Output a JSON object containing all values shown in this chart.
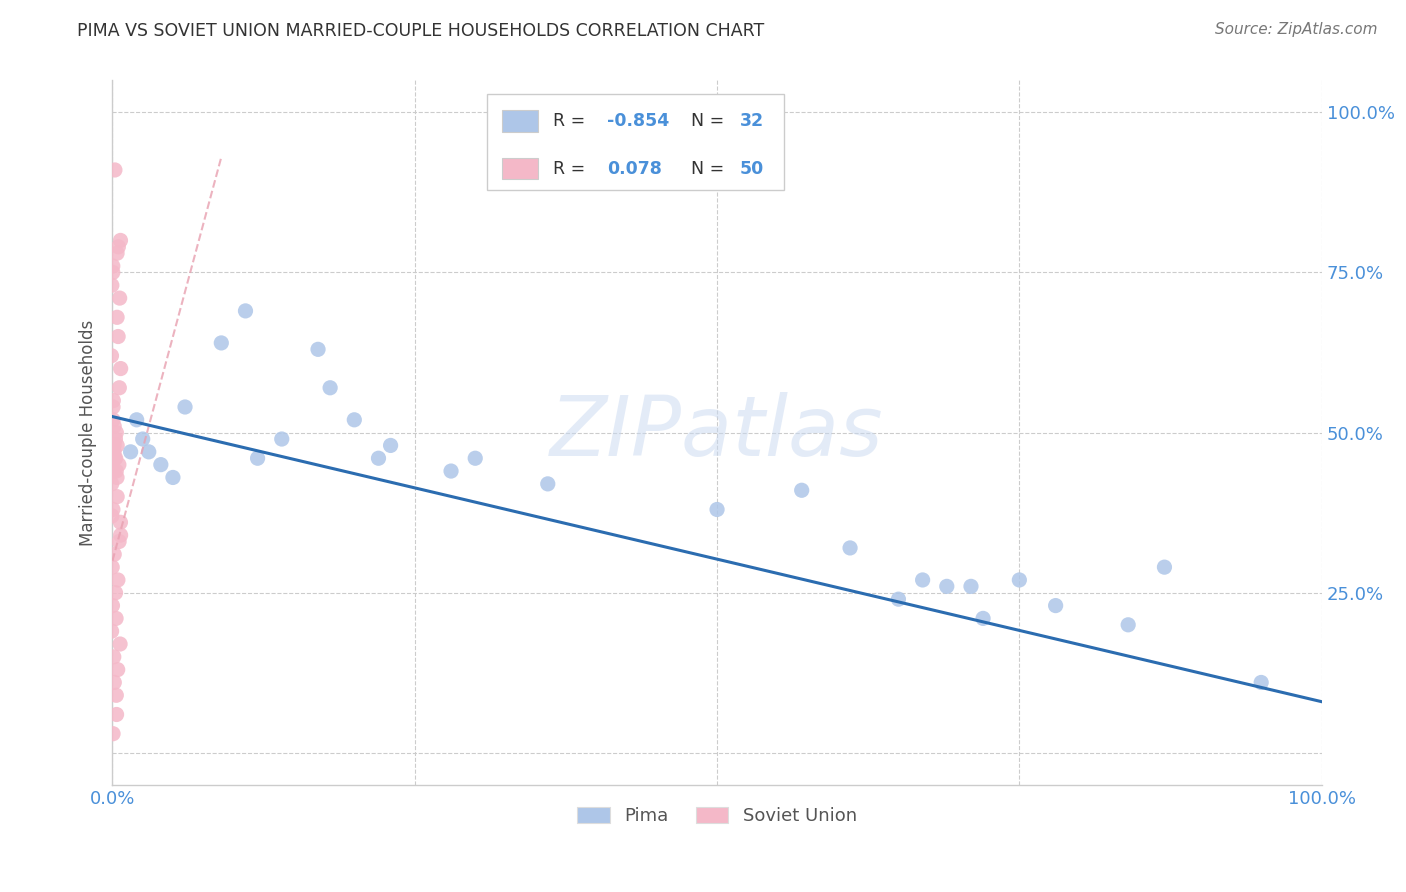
{
  "title": "PIMA VS SOVIET UNION MARRIED-COUPLE HOUSEHOLDS CORRELATION CHART",
  "source": "Source: ZipAtlas.com",
  "ylabel": "Married-couple Households",
  "background_color": "#ffffff",
  "watermark_text": "ZIPatlas",
  "legend_pima_r": "-0.854",
  "legend_pima_n": "32",
  "legend_soviet_r": "0.078",
  "legend_soviet_n": "50",
  "pima_color": "#aec6e8",
  "soviet_color": "#f4b8c8",
  "pima_line_color": "#2b6cb0",
  "soviet_line_color": "#e8a0b0",
  "title_color": "#333333",
  "label_color": "#4a90d9",
  "grid_color": "#cccccc",
  "xlim": [
    0.0,
    1.0
  ],
  "ylim": [
    -0.05,
    1.05
  ],
  "ytick_positions": [
    0.0,
    0.25,
    0.5,
    0.75,
    1.0
  ],
  "ytick_labels": [
    "",
    "25.0%",
    "50.0%",
    "75.0%",
    "100.0%"
  ],
  "xtick_positions": [
    0.0,
    0.25,
    0.5,
    0.75,
    1.0
  ],
  "xtick_labels": [
    "0.0%",
    "",
    "",
    "",
    "100.0%"
  ],
  "pima_points_x": [
    0.015,
    0.02,
    0.025,
    0.03,
    0.04,
    0.05,
    0.06,
    0.09,
    0.11,
    0.12,
    0.14,
    0.17,
    0.18,
    0.2,
    0.22,
    0.23,
    0.28,
    0.3,
    0.36,
    0.5,
    0.57,
    0.61,
    0.65,
    0.67,
    0.69,
    0.71,
    0.72,
    0.75,
    0.78,
    0.84,
    0.87,
    0.95
  ],
  "pima_points_y": [
    0.47,
    0.52,
    0.49,
    0.47,
    0.45,
    0.43,
    0.54,
    0.64,
    0.69,
    0.46,
    0.49,
    0.63,
    0.57,
    0.52,
    0.46,
    0.48,
    0.44,
    0.46,
    0.42,
    0.38,
    0.41,
    0.32,
    0.24,
    0.27,
    0.26,
    0.26,
    0.21,
    0.27,
    0.23,
    0.2,
    0.29,
    0.11
  ],
  "soviet_points_x": [
    0.003,
    0.003,
    0.003,
    0.003,
    0.003,
    0.003,
    0.003,
    0.003,
    0.003,
    0.003,
    0.003,
    0.003,
    0.003,
    0.003,
    0.003,
    0.003,
    0.003,
    0.003,
    0.003,
    0.003,
    0.003,
    0.003,
    0.003,
    0.003,
    0.003,
    0.003,
    0.003,
    0.003,
    0.003,
    0.003,
    0.003,
    0.003,
    0.003,
    0.003,
    0.003,
    0.003,
    0.003,
    0.003,
    0.003,
    0.003,
    0.003,
    0.003,
    0.003,
    0.003,
    0.003,
    0.003,
    0.003,
    0.003,
    0.003,
    0.003
  ],
  "soviet_points_y": [
    0.91,
    0.8,
    0.79,
    0.78,
    0.76,
    0.75,
    0.73,
    0.71,
    0.68,
    0.65,
    0.62,
    0.6,
    0.57,
    0.55,
    0.54,
    0.52,
    0.51,
    0.5,
    0.49,
    0.48,
    0.48,
    0.47,
    0.47,
    0.46,
    0.46,
    0.45,
    0.44,
    0.44,
    0.43,
    0.42,
    0.4,
    0.38,
    0.37,
    0.36,
    0.34,
    0.33,
    0.31,
    0.29,
    0.27,
    0.25,
    0.23,
    0.21,
    0.19,
    0.17,
    0.15,
    0.13,
    0.11,
    0.09,
    0.06,
    0.03
  ],
  "pima_trend_x0": 0.0,
  "pima_trend_y0": 0.525,
  "pima_trend_x1": 1.0,
  "pima_trend_y1": 0.08,
  "soviet_trend_x0": 0.0,
  "soviet_trend_y0": 0.3,
  "soviet_trend_x1": 0.09,
  "soviet_trend_y1": 0.93
}
